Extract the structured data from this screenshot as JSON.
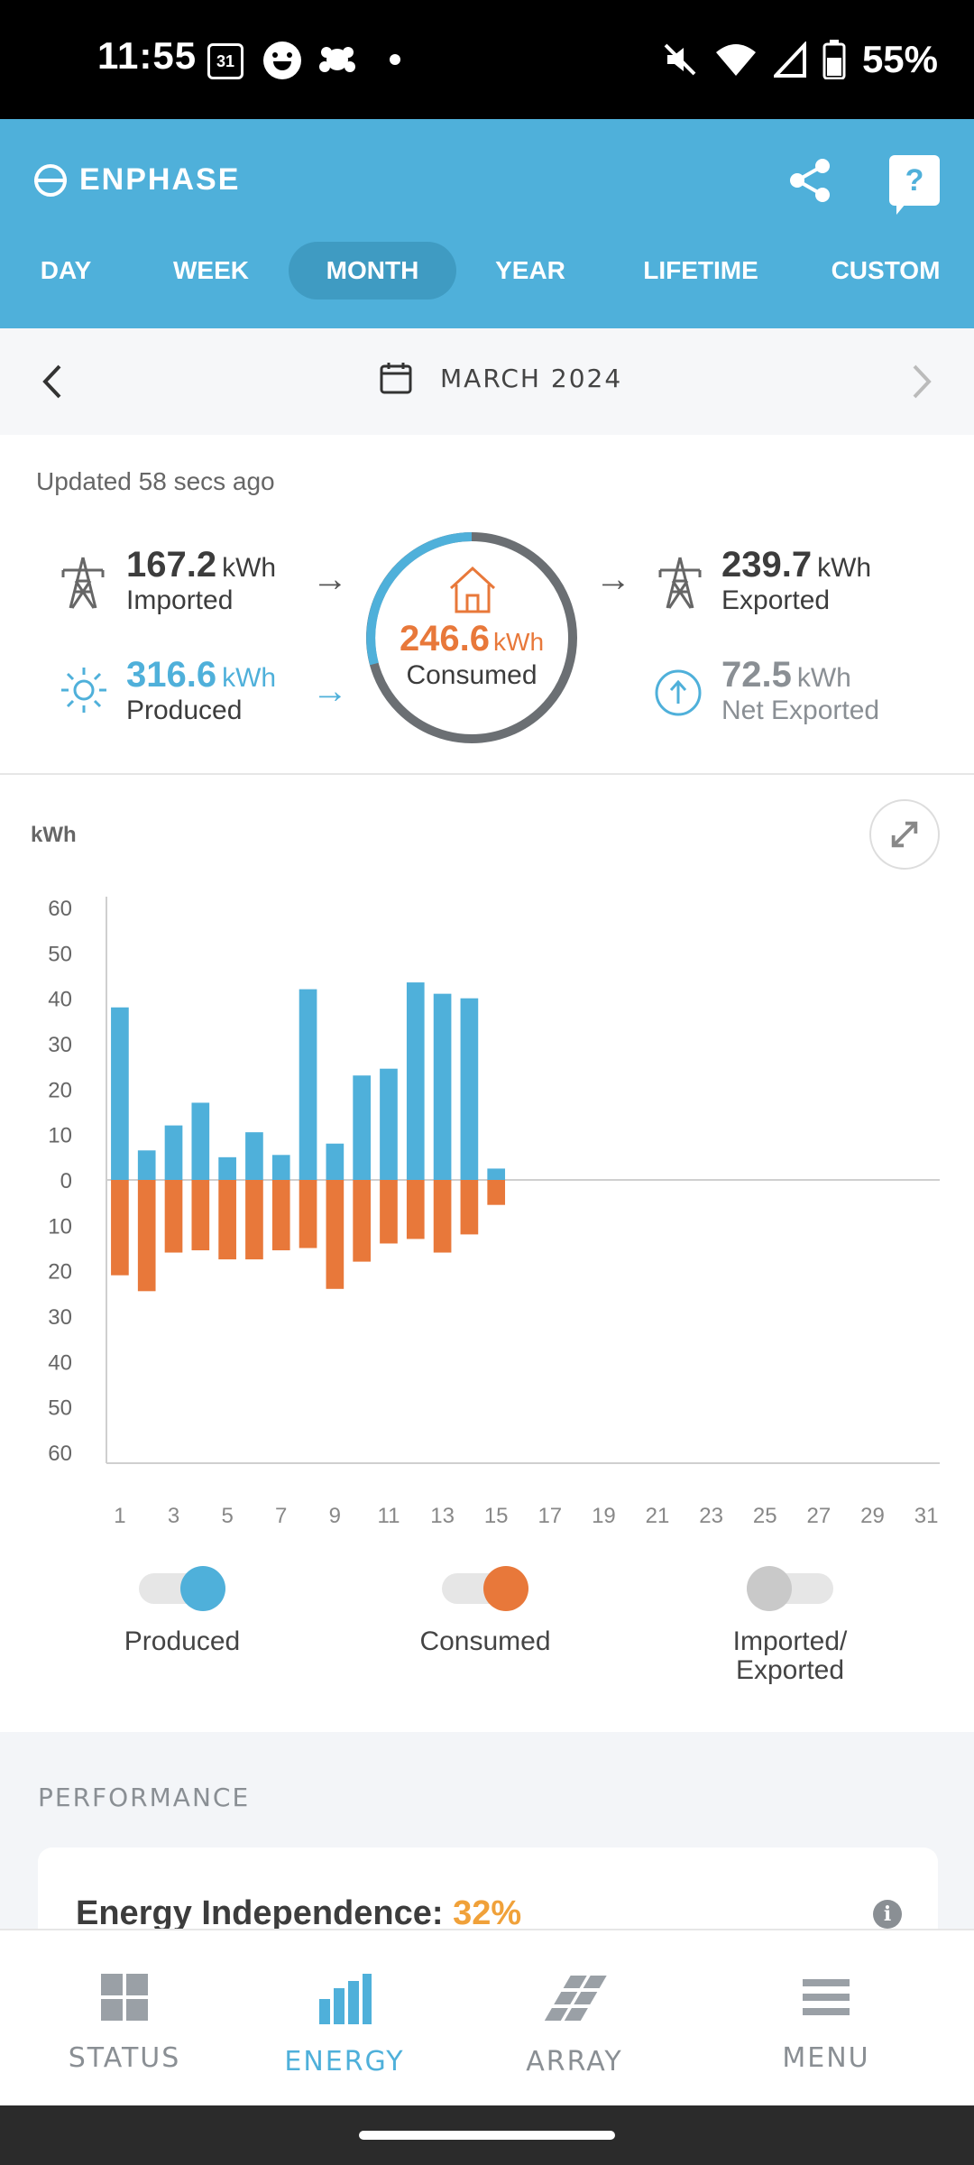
{
  "status_bar": {
    "time": "11:55",
    "calendar_day": "31",
    "battery": "55%",
    "icons": [
      "calendar-icon",
      "face-icon",
      "cloud-icon",
      "dot-icon",
      "mute-icon",
      "wifi-icon",
      "signal-icon",
      "battery-icon"
    ]
  },
  "header": {
    "logo_text": "ENPHASE",
    "help_label": "?",
    "tabs": [
      {
        "label": "DAY"
      },
      {
        "label": "WEEK"
      },
      {
        "label": "MONTH",
        "active": true
      },
      {
        "label": "YEAR"
      },
      {
        "label": "LIFETIME"
      },
      {
        "label": "CUSTOM"
      }
    ]
  },
  "date_nav": {
    "label": "MARCH 2024"
  },
  "summary": {
    "updated": "Updated 58 secs ago",
    "imported": {
      "value": "167.2",
      "unit": "kWh",
      "label": "Imported"
    },
    "produced": {
      "value": "316.6",
      "unit": "kWh",
      "label": "Produced"
    },
    "consumed": {
      "value": "246.6",
      "unit": "kWh",
      "label": "Consumed"
    },
    "exported": {
      "value": "239.7",
      "unit": "kWh",
      "label": "Exported"
    },
    "net_exported": {
      "value": "72.5",
      "unit": "kWh",
      "label": "Net Exported"
    },
    "arrow": "→"
  },
  "chart": {
    "unit_label": "kWh"
  },
  "chart_data": {
    "type": "bar",
    "ylabel": "kWh",
    "ylim": [
      -60,
      60
    ],
    "y_ticks": [
      "60",
      "50",
      "40",
      "30",
      "20",
      "10",
      "0",
      "10",
      "20",
      "30",
      "40",
      "50",
      "60"
    ],
    "x_ticks": [
      "1",
      "3",
      "5",
      "7",
      "9",
      "11",
      "13",
      "15",
      "17",
      "19",
      "21",
      "23",
      "25",
      "27",
      "29",
      "31"
    ],
    "x": [
      1,
      2,
      3,
      4,
      5,
      6,
      7,
      8,
      9,
      10,
      11,
      12,
      13,
      14,
      15
    ],
    "days_in_month": 31,
    "series": [
      {
        "name": "Produced",
        "color": "#4fb0da",
        "values": [
          38,
          6.5,
          12,
          17,
          5,
          10.5,
          5.5,
          42,
          8,
          23,
          24.5,
          43.5,
          41,
          40,
          2.5
        ]
      },
      {
        "name": "Consumed",
        "color": "#e8783a",
        "values": [
          -21,
          -24.5,
          -16,
          -15.5,
          -17.5,
          -17.5,
          -15.5,
          -15,
          -24,
          -18,
          -14,
          -13,
          -16,
          -12,
          -5.5
        ]
      }
    ]
  },
  "legend": [
    {
      "label": "Produced",
      "on": true,
      "color": "#4fb0da"
    },
    {
      "label": "Consumed",
      "on": true,
      "color": "#e8783a"
    },
    {
      "label": "Imported/",
      "label2": "Exported",
      "on": false,
      "color": "#c9c9c9"
    }
  ],
  "performance": {
    "title": "PERFORMANCE",
    "energy_independence_label": "Energy Independence:",
    "energy_independence_value": "32%",
    "info": "i"
  },
  "bottom_nav": [
    {
      "label": "STATUS",
      "icon": "grid-icon"
    },
    {
      "label": "ENERGY",
      "icon": "bar-chart-icon",
      "active": true
    },
    {
      "label": "ARRAY",
      "icon": "solar-array-icon"
    },
    {
      "label": "MENU",
      "icon": "hamburger-icon"
    }
  ]
}
